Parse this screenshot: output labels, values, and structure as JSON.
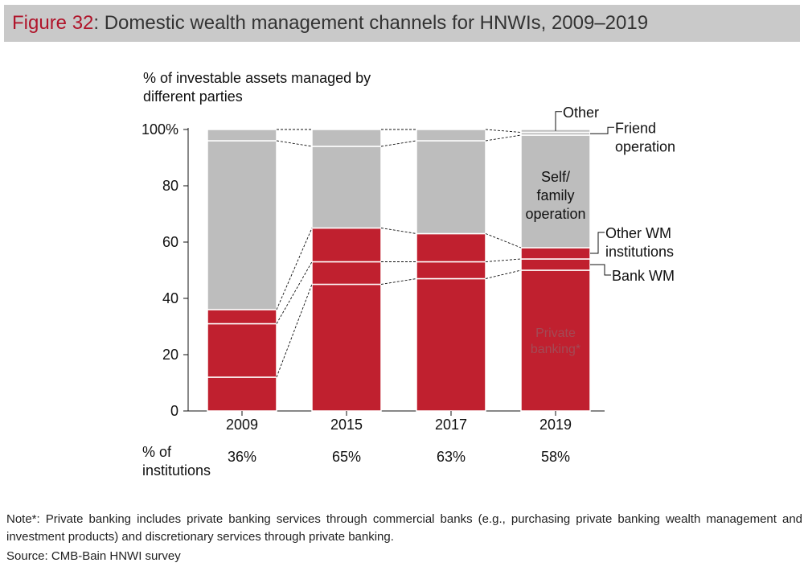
{
  "figure": {
    "label": "Figure 32",
    "title_rest": ": Domestic wealth management channels for HNWIs, 2009–2019"
  },
  "chart_data": {
    "type": "bar",
    "stacked": true,
    "title": "Figure 32: Domestic wealth management channels for HNWIs, 2009–2019",
    "ylabel_lines": [
      "% of investable assets managed by",
      "different parties"
    ],
    "ylim": [
      0,
      100
    ],
    "yticks": [
      0,
      20,
      40,
      60,
      80,
      100
    ],
    "ytick_labels": [
      "0",
      "20",
      "40",
      "60",
      "80",
      "100%"
    ],
    "categories": [
      "2009",
      "2015",
      "2017",
      "2019"
    ],
    "series": [
      {
        "name": "Private banking*",
        "color": "#c0202f",
        "values": [
          12,
          45,
          47,
          50
        ]
      },
      {
        "name": "Bank WM",
        "color": "#c0202f",
        "values": [
          19,
          8,
          6,
          4
        ]
      },
      {
        "name": "Other WM institutions",
        "color": "#c0202f",
        "values": [
          5,
          12,
          10,
          4
        ]
      },
      {
        "name": "Self/family operation",
        "color": "#bdbdbd",
        "values": [
          60,
          29,
          33,
          40
        ]
      },
      {
        "name": "Friend operation",
        "color": "#bdbdbd",
        "values": [
          4,
          6,
          4,
          1
        ]
      },
      {
        "name": "Other",
        "color": "#bdbdbd",
        "values": [
          0,
          0,
          0,
          1
        ]
      }
    ],
    "annotations": {
      "other": "Other",
      "friend_lines": [
        "Friend",
        "operation"
      ],
      "self_lines": [
        "Self/",
        "family",
        "operation"
      ],
      "other_wm_lines": [
        "Other WM",
        "institutions"
      ],
      "bank_wm": "Bank WM",
      "private_lines": [
        "Private",
        "banking*"
      ]
    },
    "institutions_label_lines": [
      "% of",
      "institutions"
    ],
    "institutions": [
      "36%",
      "65%",
      "63%",
      "58%"
    ],
    "grid": false,
    "legend": "inline-right"
  },
  "note": "Note*: Private banking includes private banking services through commercial banks (e.g., purchasing private banking wealth management and investment products) and discretionary services through private banking.",
  "source": "Source: CMB-Bain HNWI survey"
}
